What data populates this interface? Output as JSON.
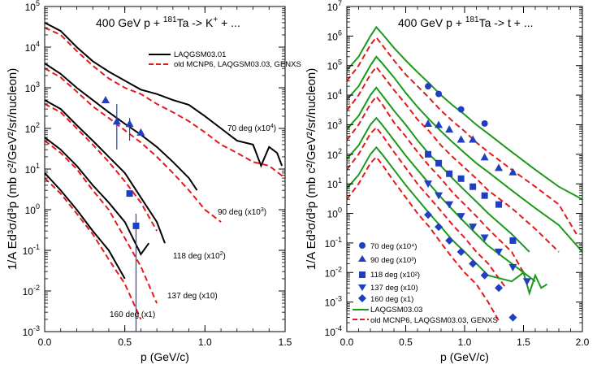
{
  "panels": [
    {
      "id": "kaon",
      "title_pre": "400 GeV p + ",
      "title_sup": "181",
      "title_post": "Ta -> K",
      "title_sup2": "+",
      "title_tail": " + ...",
      "ylabel": "1/A Ed³σ/d³p (mb c²/GeV²/sr/nucleon)",
      "xlabel": "p (GeV/c)",
      "x_ticks": [
        "0.0",
        "0.5",
        "1.0",
        "1.5"
      ],
      "legend": [
        {
          "label": "LAQGSM03.01",
          "style": "solid",
          "color": "#000000"
        },
        {
          "label": "old MCNP6, LAQGSM03.03, GENXS",
          "style": "dashed",
          "color": "#e31a1c"
        }
      ],
      "annotations": [
        {
          "pre": "70 deg (x10",
          "sup": "4",
          "post": ")"
        },
        {
          "pre": "90 deg (x10",
          "sup": "3",
          "post": ")"
        },
        {
          "pre": "118 deg (x10",
          "sup": "2",
          "post": ")"
        },
        {
          "pre": "137 deg (x10)",
          "sup": "",
          "post": ""
        },
        {
          "pre": "160 deg (x1)",
          "sup": "",
          "post": ""
        }
      ]
    },
    {
      "id": "triton",
      "title_pre": "400 GeV p + ",
      "title_sup": "181",
      "title_post": "Ta -> t + ...",
      "title_sup2": "",
      "title_tail": "",
      "ylabel": "1/A Ed³σ/d³p (mb c²/GeV²/sr/nucleon)",
      "xlabel": "p (GeV/c)",
      "x_ticks": [
        "0.0",
        "0.5",
        "1.0",
        "1.5",
        "2.0"
      ],
      "legend": [
        {
          "label": "70 deg (x10⁴)",
          "marker": "circle"
        },
        {
          "label": "90 deg (x10³)",
          "marker": "triangle-up"
        },
        {
          "label": "118 deg (x10²)",
          "marker": "square"
        },
        {
          "label": "137 deg (x10)",
          "marker": "triangle-down"
        },
        {
          "label": "160 deg (x1)",
          "marker": "diamond"
        },
        {
          "label": "LAQGSM03.03",
          "style": "solid",
          "color": "#1a9a1a"
        },
        {
          "label": "old MCNP6, LAQGSM03.03, GENXS",
          "style": "dashed",
          "color": "#e31a1c"
        }
      ]
    }
  ],
  "y_tick_exponents": [
    "-3",
    "-2",
    "-1",
    "0",
    "1",
    "2",
    "3",
    "4",
    "5"
  ],
  "y_tick_exponents_right": [
    "-4",
    "-3",
    "-2",
    "-1",
    "0",
    "1",
    "2",
    "3",
    "4",
    "5",
    "6",
    "7"
  ],
  "chart_data": [
    {
      "type": "line",
      "title": "400 GeV p + 181Ta -> K+ + ...",
      "xlabel": "p (GeV/c)",
      "ylabel": "1/A Ed3sigma/d3p (mb c2/GeV2/sr/nucleon)",
      "xlim": [
        0,
        1.5
      ],
      "ylim": [
        0.001,
        100000
      ],
      "yscale": "log",
      "series": [
        {
          "name": "LAQGSM03.01 70 deg",
          "style": "solid",
          "color": "#000000",
          "x": [
            0.0,
            0.1,
            0.2,
            0.3,
            0.4,
            0.5,
            0.6,
            0.7,
            0.8,
            0.9,
            1.0,
            1.1,
            1.2,
            1.3,
            1.35,
            1.4,
            1.45,
            1.48
          ],
          "y": [
            40000,
            25000,
            10000,
            4500,
            2500,
            1500,
            900,
            700,
            500,
            380,
            200,
            100,
            50,
            40,
            12,
            35,
            25,
            12
          ]
        },
        {
          "name": "MCNP6 70 deg",
          "style": "dashed",
          "color": "#e31a1c",
          "x": [
            0.0,
            0.1,
            0.2,
            0.3,
            0.4,
            0.5,
            0.6,
            0.7,
            0.8,
            0.9,
            1.0,
            1.1,
            1.2,
            1.3,
            1.4,
            1.5
          ],
          "y": [
            30000,
            20000,
            8000,
            3500,
            1700,
            1000,
            700,
            400,
            250,
            150,
            80,
            40,
            25,
            15,
            12,
            6
          ]
        },
        {
          "name": "LAQGSM03.01 90 deg",
          "style": "solid",
          "color": "#000000",
          "x": [
            0.0,
            0.1,
            0.2,
            0.3,
            0.4,
            0.5,
            0.6,
            0.7,
            0.8,
            0.9,
            0.95
          ],
          "y": [
            4000,
            2200,
            1000,
            500,
            250,
            130,
            70,
            35,
            15,
            6,
            3
          ]
        },
        {
          "name": "MCNP6 90 deg",
          "style": "dashed",
          "color": "#e31a1c",
          "x": [
            0.0,
            0.1,
            0.2,
            0.3,
            0.4,
            0.5,
            0.6,
            0.7,
            0.8,
            0.9,
            1.0,
            1.1
          ],
          "y": [
            3000,
            1800,
            800,
            350,
            180,
            90,
            45,
            20,
            8,
            3,
            1,
            0.5
          ]
        },
        {
          "name": "LAQGSM03.01 118 deg",
          "style": "solid",
          "color": "#000000",
          "x": [
            0.0,
            0.1,
            0.2,
            0.3,
            0.4,
            0.5,
            0.6,
            0.7,
            0.75
          ],
          "y": [
            500,
            300,
            120,
            50,
            20,
            8,
            2,
            0.5,
            0.15
          ]
        },
        {
          "name": "MCNP6 118 deg",
          "style": "dashed",
          "color": "#e31a1c",
          "x": [
            0.0,
            0.1,
            0.2,
            0.3,
            0.4,
            0.5,
            0.6,
            0.7
          ],
          "y": [
            400,
            250,
            100,
            40,
            15,
            5,
            1.5,
            0.3
          ]
        },
        {
          "name": "LAQGSM03.01 137 deg",
          "style": "solid",
          "color": "#000000",
          "x": [
            0.0,
            0.1,
            0.2,
            0.3,
            0.4,
            0.5,
            0.6,
            0.65
          ],
          "y": [
            60,
            30,
            12,
            4,
            1.5,
            0.5,
            0.08,
            0.15
          ]
        },
        {
          "name": "MCNP6 137 deg",
          "style": "dashed",
          "color": "#e31a1c",
          "x": [
            0.0,
            0.1,
            0.2,
            0.3,
            0.4,
            0.5,
            0.6,
            0.7
          ],
          "y": [
            50,
            25,
            10,
            3,
            1,
            0.2,
            0.04,
            0.005
          ]
        },
        {
          "name": "LAQGSM03.01 160 deg",
          "style": "solid",
          "color": "#000000",
          "x": [
            0.0,
            0.1,
            0.2,
            0.3,
            0.4,
            0.5
          ],
          "y": [
            8,
            3,
            1,
            0.3,
            0.1,
            0.02
          ]
        },
        {
          "name": "MCNP6 160 deg",
          "style": "dashed",
          "color": "#e31a1c",
          "x": [
            0.0,
            0.1,
            0.2,
            0.3,
            0.4,
            0.5,
            0.6
          ],
          "y": [
            6,
            2.5,
            0.8,
            0.25,
            0.06,
            0.015,
            0.002
          ]
        },
        {
          "name": "Data 70 deg",
          "style": "marker",
          "marker": "triangle-up",
          "color": "#1f3fbf",
          "x": [
            0.38,
            0.45,
            0.53,
            0.6
          ],
          "y": [
            500,
            150,
            130,
            80
          ]
        },
        {
          "name": "Data 90 deg",
          "style": "marker",
          "marker": "square",
          "color": "#1f3fbf",
          "x": [
            0.53,
            0.57
          ],
          "y": [
            2.5,
            0.4
          ]
        }
      ]
    },
    {
      "type": "line",
      "title": "400 GeV p + 181Ta -> t + ...",
      "xlabel": "p (GeV/c)",
      "ylabel": "1/A Ed3sigma/d3p (mb c2/GeV2/sr/nucleon)",
      "xlim": [
        0,
        2.0
      ],
      "ylim": [
        0.0001,
        10000000
      ],
      "yscale": "log",
      "series": [
        {
          "name": "LAQGSM03.03 70 deg",
          "style": "solid",
          "color": "#1a9a1a",
          "x": [
            0.0,
            0.1,
            0.2,
            0.25,
            0.3,
            0.4,
            0.5,
            0.6,
            0.7,
            0.8,
            0.9,
            1.0,
            1.1,
            1.2,
            1.4,
            1.6,
            1.8,
            2.0
          ],
          "y": [
            70000,
            200000,
            1000000,
            2000000,
            1200000,
            400000,
            150000,
            60000,
            25000,
            10000,
            4500,
            2200,
            1000,
            500,
            120,
            30,
            8,
            3
          ]
        },
        {
          "name": "MCNP6 70 deg",
          "style": "dashed",
          "color": "#e31a1c",
          "x": [
            0.0,
            0.1,
            0.2,
            0.25,
            0.3,
            0.4,
            0.5,
            0.6,
            0.7,
            0.8,
            0.9,
            1.0,
            1.1,
            1.2,
            1.4,
            1.6,
            1.8,
            1.95
          ],
          "y": [
            30000,
            100000,
            500000,
            900000,
            500000,
            150000,
            50000,
            20000,
            8000,
            3000,
            1300,
            600,
            250,
            120,
            30,
            8,
            2,
            0.2
          ]
        },
        {
          "name": "LAQGSM03.03 90 deg",
          "style": "solid",
          "color": "#1a9a1a",
          "x": [
            0.0,
            0.1,
            0.2,
            0.25,
            0.3,
            0.4,
            0.5,
            0.6,
            0.7,
            0.8,
            0.9,
            1.0,
            1.1,
            1.2,
            1.4,
            1.6,
            1.8,
            2.0
          ],
          "y": [
            7000,
            20000,
            100000,
            200000,
            120000,
            40000,
            12000,
            4000,
            1500,
            600,
            250,
            110,
            50,
            25,
            6,
            1.5,
            0.4,
            0.05
          ]
        },
        {
          "name": "MCNP6 90 deg",
          "style": "dashed",
          "color": "#e31a1c",
          "x": [
            0.0,
            0.1,
            0.2,
            0.25,
            0.3,
            0.4,
            0.5,
            0.6,
            0.7,
            0.8,
            0.9,
            1.0,
            1.1,
            1.2,
            1.4,
            1.6,
            1.8
          ],
          "y": [
            3000,
            10000,
            50000,
            90000,
            50000,
            15000,
            5000,
            1500,
            600,
            200,
            80,
            35,
            15,
            6,
            1.5,
            0.3,
            0.05
          ]
        },
        {
          "name": "LAQGSM03.03 118 deg",
          "style": "solid",
          "color": "#1a9a1a",
          "x": [
            0.0,
            0.1,
            0.2,
            0.25,
            0.3,
            0.4,
            0.5,
            0.6,
            0.7,
            0.8,
            0.9,
            1.0,
            1.1,
            1.2,
            1.4,
            1.55
          ],
          "y": [
            700,
            2000,
            10000,
            18000,
            10000,
            3000,
            1000,
            300,
            100,
            40,
            15,
            6,
            2.5,
            1,
            0.2,
            0.05
          ]
        },
        {
          "name": "MCNP6 118 deg",
          "style": "dashed",
          "color": "#e31a1c",
          "x": [
            0.0,
            0.1,
            0.2,
            0.25,
            0.3,
            0.4,
            0.5,
            0.6,
            0.7,
            0.8,
            0.9,
            1.0,
            1.1,
            1.2,
            1.4,
            1.5
          ],
          "y": [
            300,
            1000,
            5000,
            9000,
            5000,
            1200,
            400,
            120,
            40,
            15,
            5,
            2,
            0.8,
            0.3,
            0.05,
            0.01
          ]
        },
        {
          "name": "LAQGSM03.03 137 deg",
          "style": "solid",
          "color": "#1a9a1a",
          "x": [
            0.0,
            0.1,
            0.2,
            0.25,
            0.3,
            0.4,
            0.5,
            0.6,
            0.7,
            0.8,
            0.9,
            1.0,
            1.1,
            1.2,
            1.4,
            1.6
          ],
          "y": [
            70,
            200,
            1000,
            1700,
            1000,
            300,
            90,
            30,
            10,
            3.5,
            1.3,
            0.5,
            0.2,
            0.08,
            0.02,
            0.005
          ]
        },
        {
          "name": "MCNP6 137 deg",
          "style": "dashed",
          "color": "#e31a1c",
          "x": [
            0.0,
            0.1,
            0.2,
            0.25,
            0.3,
            0.4,
            0.5,
            0.6,
            0.7,
            0.8,
            0.9,
            1.0,
            1.1,
            1.2,
            1.35
          ],
          "y": [
            30,
            100,
            500,
            800,
            450,
            120,
            35,
            10,
            3.5,
            1.2,
            0.4,
            0.15,
            0.05,
            0.02,
            0.003
          ]
        },
        {
          "name": "LAQGSM03.03 160 deg",
          "style": "solid",
          "color": "#1a9a1a",
          "x": [
            0.0,
            0.1,
            0.2,
            0.25,
            0.3,
            0.4,
            0.5,
            0.6,
            0.7,
            0.8,
            0.9,
            1.0,
            1.1,
            1.2,
            1.4,
            1.5,
            1.55,
            1.6,
            1.65,
            1.7
          ],
          "y": [
            7,
            20,
            100,
            170,
            100,
            30,
            9,
            3,
            1,
            0.35,
            0.12,
            0.05,
            0.02,
            0.008,
            0.005,
            0.01,
            0.002,
            0.008,
            0.003,
            0.004
          ]
        },
        {
          "name": "MCNP6 160 deg",
          "style": "dashed",
          "color": "#e31a1c",
          "x": [
            0.0,
            0.1,
            0.2,
            0.25,
            0.3,
            0.4,
            0.5,
            0.6,
            0.7,
            0.8,
            0.9,
            1.0,
            1.1,
            1.2,
            1.3
          ],
          "y": [
            3,
            10,
            50,
            80,
            45,
            12,
            3.5,
            1,
            0.35,
            0.1,
            0.03,
            0.01,
            0.004,
            0.001,
            0.0002
          ]
        },
        {
          "name": "Data 70 deg (x10^4)",
          "style": "marker",
          "marker": "circle",
          "color": "#1f3fbf",
          "x": [
            0.69,
            0.78,
            0.97,
            1.17
          ],
          "y": [
            20000,
            11000,
            3300,
            1100
          ]
        },
        {
          "name": "Data 90 deg (x10^3)",
          "style": "marker",
          "marker": "triangle-up",
          "color": "#1f3fbf",
          "x": [
            0.69,
            0.78,
            0.87,
            0.97,
            1.07,
            1.17,
            1.29,
            1.41
          ],
          "y": [
            1100,
            1000,
            700,
            320,
            320,
            80,
            35,
            25
          ]
        },
        {
          "name": "Data 118 deg (x10^2)",
          "style": "marker",
          "marker": "square",
          "color": "#1f3fbf",
          "x": [
            0.69,
            0.78,
            0.87,
            0.97,
            1.07,
            1.17,
            1.29,
            1.41
          ],
          "y": [
            100,
            50,
            22,
            15,
            8,
            4,
            2,
            0.12
          ]
        },
        {
          "name": "Data 137 deg (x10)",
          "style": "marker",
          "marker": "triangle-down",
          "color": "#1f3fbf",
          "x": [
            0.69,
            0.78,
            0.87,
            0.97,
            1.07,
            1.17,
            1.29,
            1.41,
            1.53
          ],
          "y": [
            10,
            4,
            2,
            0.8,
            0.35,
            0.15,
            0.05,
            0.015,
            0.005
          ]
        },
        {
          "name": "Data 160 deg (x1)",
          "style": "marker",
          "marker": "diamond",
          "color": "#1f3fbf",
          "x": [
            0.69,
            0.78,
            0.87,
            0.97,
            1.07,
            1.17,
            1.29,
            1.41
          ],
          "y": [
            0.9,
            0.35,
            0.12,
            0.05,
            0.02,
            0.008,
            0.003,
            0.0003
          ]
        }
      ]
    }
  ]
}
